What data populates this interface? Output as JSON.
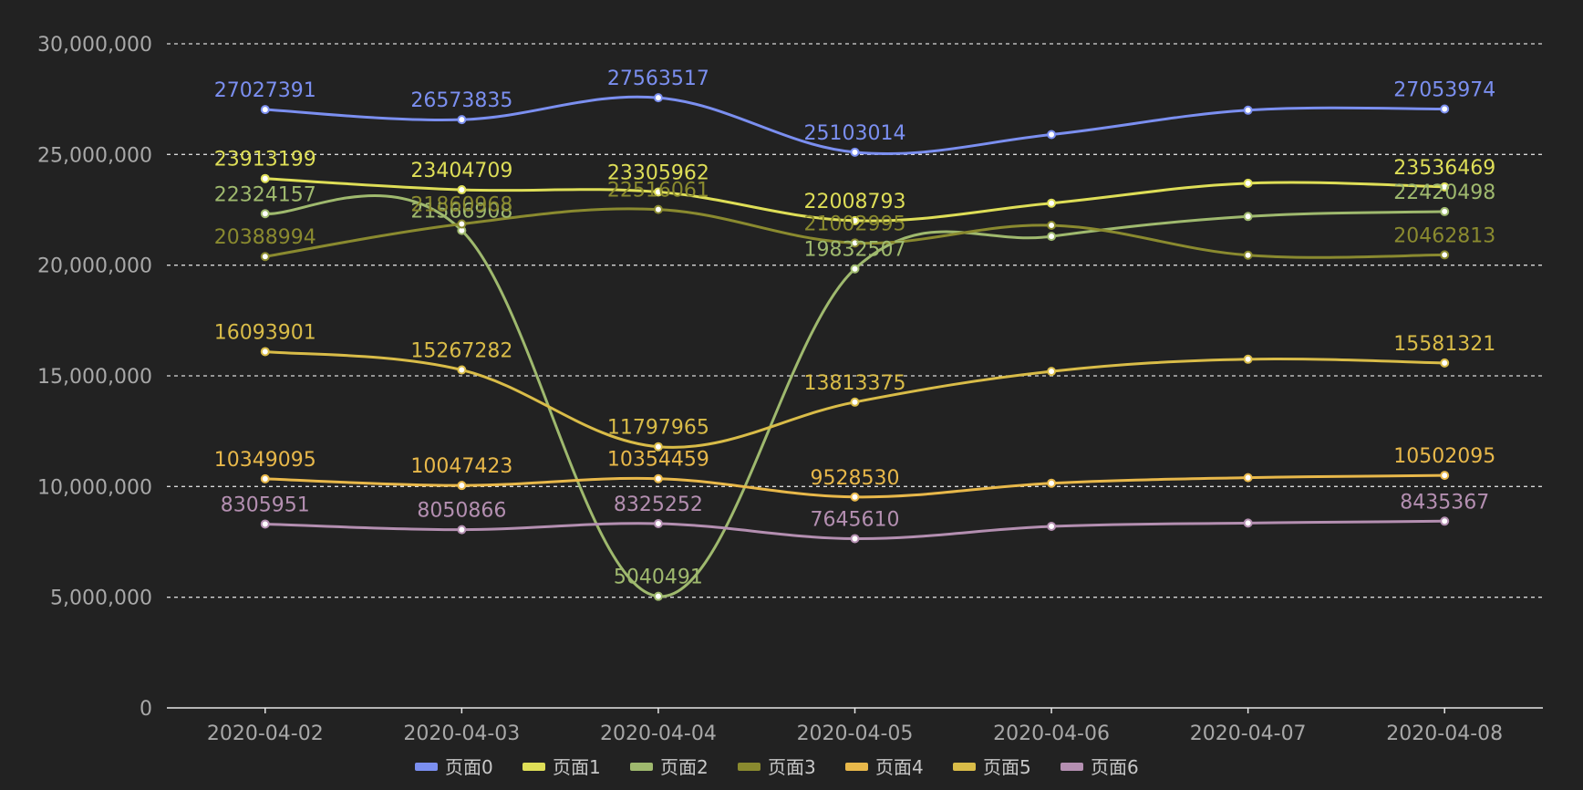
{
  "chart_data": {
    "type": "line",
    "smooth": true,
    "x": [
      "2020-04-02",
      "2020-04-03",
      "2020-04-04",
      "2020-04-05",
      "2020-04-06",
      "2020-04-07",
      "2020-04-08"
    ],
    "ylim": [
      0,
      30000000
    ],
    "yticks": [
      0,
      5000000,
      10000000,
      15000000,
      20000000,
      25000000,
      30000000
    ],
    "ytick_labels": [
      "0",
      "5,000,000",
      "10,000,000",
      "15,000,000",
      "20,000,000",
      "25,000,000",
      "30,000,000"
    ],
    "grid": "horizontal dashed",
    "legend_position": "bottom-center",
    "series": [
      {
        "name": "页面0",
        "color": "#7b8ff0",
        "values": [
          27027391,
          26573835,
          27563517,
          25103014,
          25900000,
          27000000,
          27053974
        ],
        "labeled": [
          true,
          true,
          true,
          true,
          false,
          false,
          true
        ]
      },
      {
        "name": "页面1",
        "color": "#dede57",
        "values": [
          23913199,
          23404709,
          23305962,
          22008793,
          22800000,
          23700000,
          23536469
        ],
        "labeled": [
          true,
          true,
          true,
          true,
          false,
          false,
          true
        ]
      },
      {
        "name": "页面2",
        "color": "#9fb96e",
        "values": [
          22324157,
          21566908,
          5040491,
          19832507,
          21300000,
          22200000,
          22420498
        ],
        "labeled": [
          true,
          true,
          true,
          true,
          false,
          false,
          true
        ]
      },
      {
        "name": "页面3",
        "color": "#8a8a2f",
        "values": [
          20388994,
          21860968,
          22516061,
          21002995,
          21800000,
          20450000,
          20462813
        ],
        "labeled": [
          true,
          true,
          true,
          true,
          false,
          false,
          true
        ]
      },
      {
        "name": "页面4",
        "color": "#e8b84a",
        "values": [
          10349095,
          10047423,
          10354459,
          9528530,
          10150000,
          10400000,
          10502095
        ],
        "labeled": [
          true,
          true,
          true,
          true,
          false,
          false,
          true
        ]
      },
      {
        "name": "页面5",
        "color": "#d9bc48",
        "values": [
          16093901,
          15267282,
          11797965,
          13813375,
          15200000,
          15750000,
          15581321
        ],
        "labeled": [
          true,
          true,
          true,
          true,
          false,
          false,
          true
        ]
      },
      {
        "name": "页面6",
        "color": "#b48fb1",
        "values": [
          8305951,
          8050866,
          8325252,
          7645610,
          8200000,
          8350000,
          8435367
        ],
        "labeled": [
          true,
          true,
          true,
          true,
          false,
          false,
          true
        ]
      }
    ]
  }
}
